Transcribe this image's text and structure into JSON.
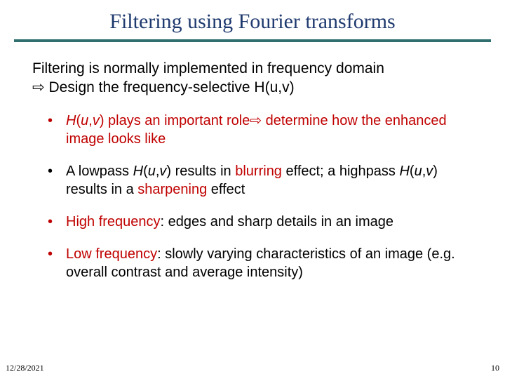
{
  "title": {
    "text": "Filtering using Fourier transforms",
    "color": "#1f3a6f",
    "fontsize": 30
  },
  "rule": {
    "color": "#2f6f6f",
    "thickness": 4
  },
  "intro": {
    "line1": "Filtering is normally implemented in frequency domain",
    "line2_prefix_symbol": "⇨",
    "line2": " Design the frequency-selective H(u,v)",
    "color": "#000000",
    "fontsize": 21
  },
  "bullets": {
    "fontsize": 20,
    "items": [
      {
        "parts": [
          {
            "text": "H",
            "style": "italic",
            "color": "#c00000"
          },
          {
            "text": "(",
            "color": "#c00000"
          },
          {
            "text": "u",
            "style": "italic",
            "color": "#c00000"
          },
          {
            "text": ",",
            "color": "#c00000"
          },
          {
            "text": "v",
            "style": "italic",
            "color": "#c00000"
          },
          {
            "text": ") plays an important role⇨ determine how the enhanced image looks like",
            "color": "#c00000"
          }
        ],
        "color": "#c00000"
      },
      {
        "parts": [
          {
            "text": "A lowpass ",
            "color": "#000000"
          },
          {
            "text": "H",
            "style": "italic",
            "color": "#000000"
          },
          {
            "text": "(",
            "color": "#000000"
          },
          {
            "text": "u",
            "style": "italic",
            "color": "#000000"
          },
          {
            "text": ",",
            "color": "#000000"
          },
          {
            "text": "v",
            "style": "italic",
            "color": "#000000"
          },
          {
            "text": ") results in ",
            "color": "#000000"
          },
          {
            "text": "blurring",
            "color": "#c00000"
          },
          {
            "text": " effect; a highpass ",
            "color": "#000000"
          },
          {
            "text": "H",
            "style": "italic",
            "color": "#000000"
          },
          {
            "text": "(",
            "color": "#000000"
          },
          {
            "text": "u",
            "style": "italic",
            "color": "#000000"
          },
          {
            "text": ",",
            "color": "#000000"
          },
          {
            "text": "v",
            "style": "italic",
            "color": "#000000"
          },
          {
            "text": ") results in a ",
            "color": "#000000"
          },
          {
            "text": "sharpening",
            "color": "#c00000"
          },
          {
            "text": " effect",
            "color": "#000000"
          }
        ],
        "color": "#000000"
      },
      {
        "parts": [
          {
            "text": "High frequency",
            "color": "#c00000"
          },
          {
            "text": ": edges and sharp details in an image",
            "color": "#000000"
          }
        ],
        "color": "#c00000"
      },
      {
        "parts": [
          {
            "text": "Low frequency",
            "color": "#c00000"
          },
          {
            "text": ": slowly varying characteristics of an image (e.g. overall contrast and average intensity)",
            "color": "#000000"
          }
        ],
        "color": "#c00000"
      }
    ]
  },
  "footer": {
    "date": "12/28/2021",
    "page": "10",
    "color": "#000000",
    "fontsize": 12
  }
}
